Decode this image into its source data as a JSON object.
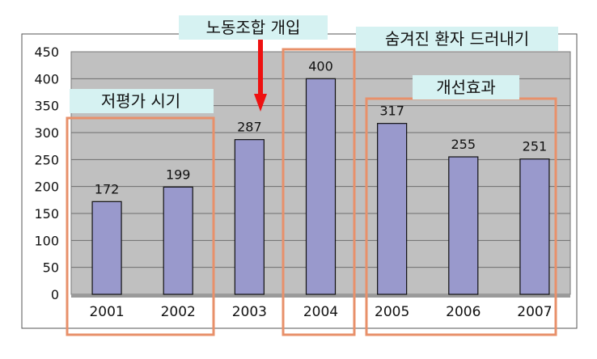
{
  "chart_data": {
    "type": "bar",
    "categories": [
      "2001",
      "2002",
      "2003",
      "2004",
      "2005",
      "2006",
      "2007"
    ],
    "values": [
      172,
      199,
      287,
      400,
      317,
      255,
      251
    ],
    "ylim": [
      0,
      450
    ],
    "yticks": [
      0,
      50,
      100,
      150,
      200,
      250,
      300,
      350,
      400,
      450
    ],
    "grid": true,
    "legend": "none",
    "annotations": {
      "period_low": "저평가 시기",
      "union_intervention": "노동조합 개입",
      "hidden_patients": "숨겨진 환자 드러내기",
      "improvement_effect": "개선효과"
    }
  },
  "colors": {
    "bar_fill": "#9999cc",
    "plot_bg": "#c0c0c0",
    "highlight_box": "#e8906a",
    "label_bg": "#d6f2f2",
    "arrow": "#ee1111"
  }
}
